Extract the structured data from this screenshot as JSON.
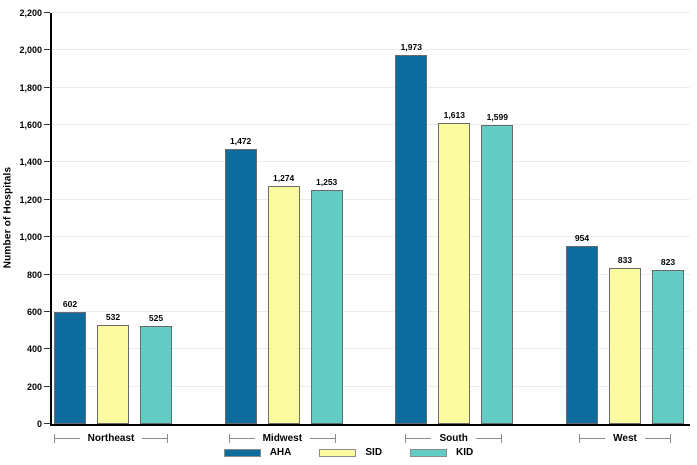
{
  "chart_data": {
    "type": "bar",
    "title": "",
    "xlabel": "",
    "ylabel": "Number of Hospitals",
    "ylim": [
      0,
      2200
    ],
    "ytick_step": 200,
    "yticks": [
      "0",
      "200",
      "400",
      "600",
      "800",
      "1,000",
      "1,200",
      "1,400",
      "1,600",
      "1,800",
      "2,000",
      "2,200"
    ],
    "grid": "horizontal-major-only",
    "gridline_color": "#ececec",
    "data_labels_shown": true,
    "legend_position": "bottom-center",
    "categories": [
      "Northeast",
      "Midwest",
      "South",
      "West"
    ],
    "series": [
      {
        "name": "AHA",
        "color": "#0d6b9e",
        "values": [
          602,
          1472,
          1973,
          954
        ],
        "value_labels": [
          "602",
          "1,472",
          "1,973",
          "954"
        ]
      },
      {
        "name": "SID",
        "color": "#fbfba0",
        "values": [
          532,
          1274,
          1613,
          833
        ],
        "value_labels": [
          "532",
          "1,274",
          "1,613",
          "833"
        ]
      },
      {
        "name": "KID",
        "color": "#63ccc5",
        "values": [
          525,
          1253,
          1599,
          823
        ],
        "value_labels": [
          "525",
          "1,253",
          "1,599",
          "823"
        ]
      }
    ]
  }
}
